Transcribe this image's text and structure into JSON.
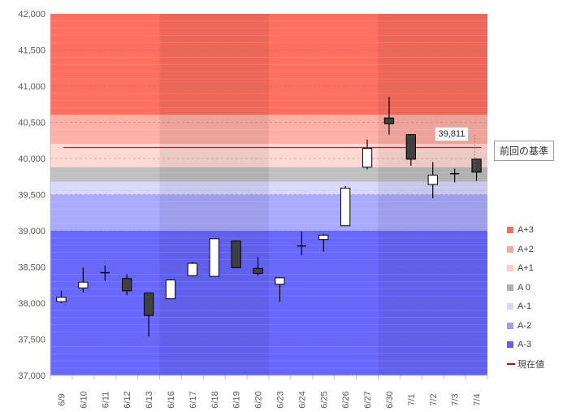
{
  "chart_data": {
    "type": "candlestick",
    "ylim": [
      37000,
      42000
    ],
    "y_ticks": [
      "37,000",
      "37,500",
      "38,000",
      "38,500",
      "39,000",
      "39,500",
      "40,000",
      "40,500",
      "41,000",
      "41,500",
      "42,000"
    ],
    "y_tick_values": [
      37000,
      37500,
      38000,
      38500,
      39000,
      39500,
      40000,
      40500,
      41000,
      41500,
      42000
    ],
    "grid": true,
    "legend_position": "right",
    "categories": [
      "6/9",
      "6/10",
      "6/11",
      "6/12",
      "6/13",
      "6/16",
      "6/17",
      "6/18",
      "6/19",
      "6/20",
      "6/23",
      "6/24",
      "6/25",
      "6/26",
      "6/27",
      "6/30",
      "7/1",
      "7/2",
      "7/3",
      "7/4"
    ],
    "candles": [
      {
        "date": "6/9",
        "open": 38020,
        "high": 38170,
        "low": 38000,
        "close": 38080
      },
      {
        "date": "6/10",
        "open": 38210,
        "high": 38490,
        "low": 38150,
        "close": 38290
      },
      {
        "date": "6/11",
        "open": 38420,
        "high": 38520,
        "low": 38310,
        "close": 38420
      },
      {
        "date": "6/12",
        "open": 38340,
        "high": 38400,
        "low": 38110,
        "close": 38170
      },
      {
        "date": "6/13",
        "open": 38140,
        "high": 38140,
        "low": 37540,
        "close": 37830
      },
      {
        "date": "6/16",
        "open": 38060,
        "high": 38330,
        "low": 38060,
        "close": 38320
      },
      {
        "date": "6/17",
        "open": 38380,
        "high": 38570,
        "low": 38370,
        "close": 38550
      },
      {
        "date": "6/18",
        "open": 38370,
        "high": 38890,
        "low": 38370,
        "close": 38890
      },
      {
        "date": "6/19",
        "open": 38860,
        "high": 38860,
        "low": 38490,
        "close": 38490
      },
      {
        "date": "6/20",
        "open": 38480,
        "high": 38640,
        "low": 38380,
        "close": 38410
      },
      {
        "date": "6/23",
        "open": 38260,
        "high": 38360,
        "low": 38020,
        "close": 38350
      },
      {
        "date": "6/24",
        "open": 38780,
        "high": 38990,
        "low": 38660,
        "close": 38790
      },
      {
        "date": "6/25",
        "open": 38880,
        "high": 38960,
        "low": 38710,
        "close": 38940
      },
      {
        "date": "6/26",
        "open": 39070,
        "high": 39620,
        "low": 39070,
        "close": 39590
      },
      {
        "date": "6/27",
        "open": 39880,
        "high": 40260,
        "low": 39850,
        "close": 40140
      },
      {
        "date": "6/30",
        "open": 40560,
        "high": 40850,
        "low": 40330,
        "close": 40480
      },
      {
        "date": "7/1",
        "open": 40330,
        "high": 40330,
        "low": 39900,
        "close": 39990
      },
      {
        "date": "7/2",
        "open": 39640,
        "high": 39950,
        "low": 39450,
        "close": 39770
      },
      {
        "date": "7/3",
        "open": 39790,
        "high": 39860,
        "low": 39670,
        "close": 39780
      },
      {
        "date": "7/4",
        "open": 39990,
        "high": 39990,
        "low": 39690,
        "close": 39810
      }
    ],
    "bands": [
      {
        "name": "A+3",
        "from": 40600,
        "to": 42000,
        "color": "#ff6f60"
      },
      {
        "name": "A+2",
        "from": 40200,
        "to": 40600,
        "color": "#ffb0a6"
      },
      {
        "name": "A+1",
        "from": 39880,
        "to": 40200,
        "color": "#ffd9d2"
      },
      {
        "name": "A 0",
        "from": 39680,
        "to": 39880,
        "color": "#bfbfbf"
      },
      {
        "name": "A-1",
        "from": 39500,
        "to": 39680,
        "color": "#d8d8ff"
      },
      {
        "name": "A-2",
        "from": 39000,
        "to": 39500,
        "color": "#aaaaff"
      },
      {
        "name": "A-3",
        "from": 37000,
        "to": 39000,
        "color": "#6868ff"
      }
    ],
    "week_shading": [
      {
        "from_index": 5,
        "to_index": 9
      },
      {
        "from_index": 15,
        "to_index": 19
      }
    ],
    "current_value": {
      "name": "現在値",
      "value": 40150,
      "color": "#c00000"
    },
    "callout": {
      "text": "39,811",
      "value": 39811
    },
    "reference_label": {
      "text": "前回の基準"
    },
    "legend": [
      {
        "label": "A+3",
        "color": "#f07060",
        "kind": "square"
      },
      {
        "label": "A+2",
        "color": "#f4a8a0",
        "kind": "square"
      },
      {
        "label": "A+1",
        "color": "#f8d0c8",
        "kind": "square"
      },
      {
        "label": "A 0",
        "color": "#b0b0b0",
        "kind": "square"
      },
      {
        "label": "A-1",
        "color": "#d8d8f8",
        "kind": "square"
      },
      {
        "label": "A-2",
        "color": "#a0a0f0",
        "kind": "square"
      },
      {
        "label": "A-3",
        "color": "#6060e8",
        "kind": "square"
      },
      {
        "label": "現在値",
        "color": "#c00000",
        "kind": "line"
      }
    ],
    "colors": {
      "up_fill": "#ffffff",
      "down_fill": "#404040",
      "candle_stroke": "#000000",
      "axis": "#bfbfbf"
    }
  }
}
